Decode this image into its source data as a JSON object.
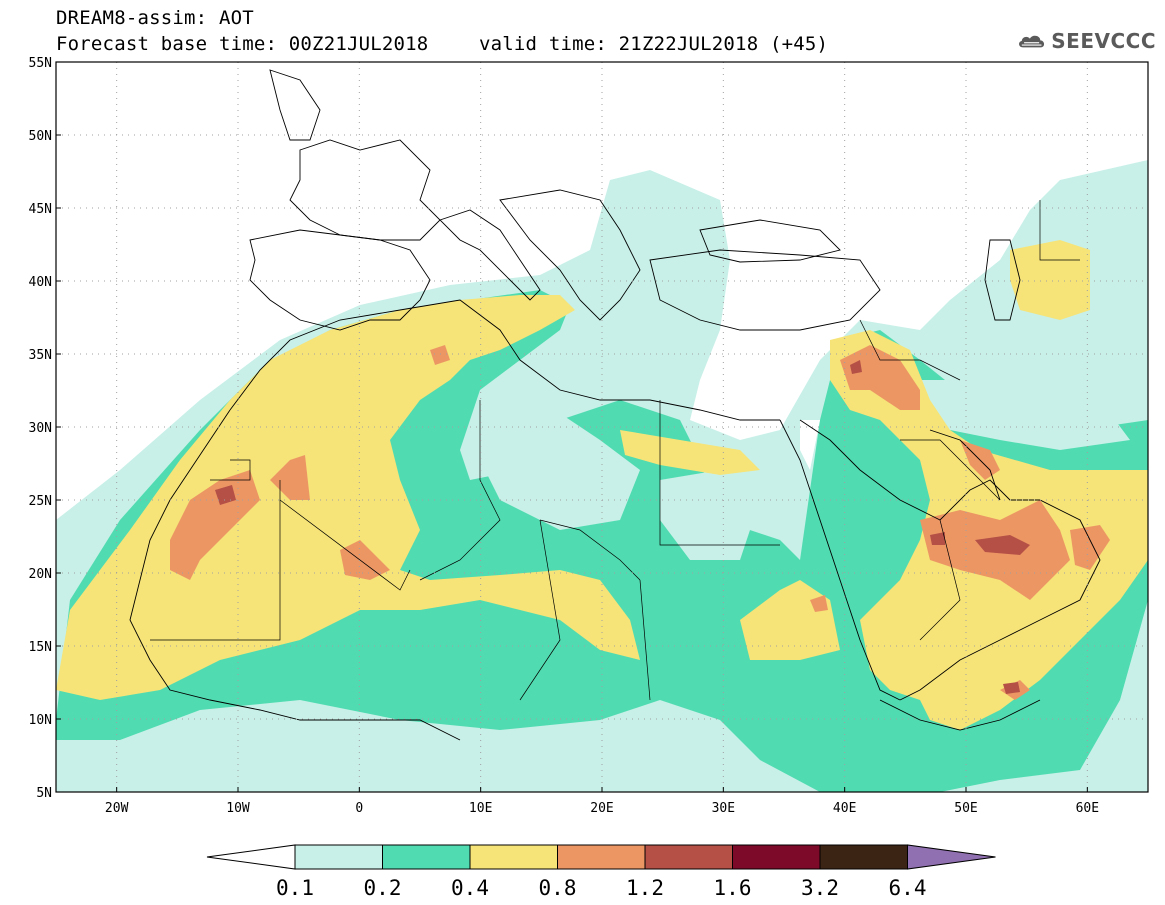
{
  "header": {
    "title": "DREAM8-assim: AOT",
    "base_time": "Forecast base time: 00Z21JUL2018",
    "valid_time": "valid time: 21Z22JUL2018 (+45)"
  },
  "logo": {
    "icon": "cloud-icon",
    "text": "SEEVCCC"
  },
  "map": {
    "lon_range": [
      -25,
      65
    ],
    "lat_range": [
      5,
      55
    ],
    "lat_ticks": [
      {
        "value": 55,
        "label": "55N"
      },
      {
        "value": 50,
        "label": "50N"
      },
      {
        "value": 45,
        "label": "45N"
      },
      {
        "value": 40,
        "label": "40N"
      },
      {
        "value": 35,
        "label": "35N"
      },
      {
        "value": 30,
        "label": "30N"
      },
      {
        "value": 25,
        "label": "25N"
      },
      {
        "value": 20,
        "label": "20N"
      },
      {
        "value": 15,
        "label": "15N"
      },
      {
        "value": 10,
        "label": "10N"
      },
      {
        "value": 5,
        "label": "5N"
      }
    ],
    "lon_ticks": [
      {
        "value": -20,
        "label": "20W"
      },
      {
        "value": -10,
        "label": "10W"
      },
      {
        "value": 0,
        "label": "0"
      },
      {
        "value": 10,
        "label": "10E"
      },
      {
        "value": 20,
        "label": "20E"
      },
      {
        "value": 30,
        "label": "30E"
      },
      {
        "value": 40,
        "label": "40E"
      },
      {
        "value": 50,
        "label": "50E"
      },
      {
        "value": 60,
        "label": "60E"
      }
    ],
    "grid": "dotted"
  },
  "colorbar": {
    "bins": [
      {
        "color": "#ffffff"
      },
      {
        "color": "#c8f0e8"
      },
      {
        "color": "#50dcb0"
      },
      {
        "color": "#f6e478"
      },
      {
        "color": "#ec9664"
      },
      {
        "color": "#b45046"
      },
      {
        "color": "#7e0a2a"
      },
      {
        "color": "#3c2414"
      },
      {
        "color": "#9070b0"
      }
    ],
    "labels": [
      "0.1",
      "0.2",
      "0.4",
      "0.8",
      "1.2",
      "1.6",
      "3.2",
      "6.4"
    ]
  }
}
